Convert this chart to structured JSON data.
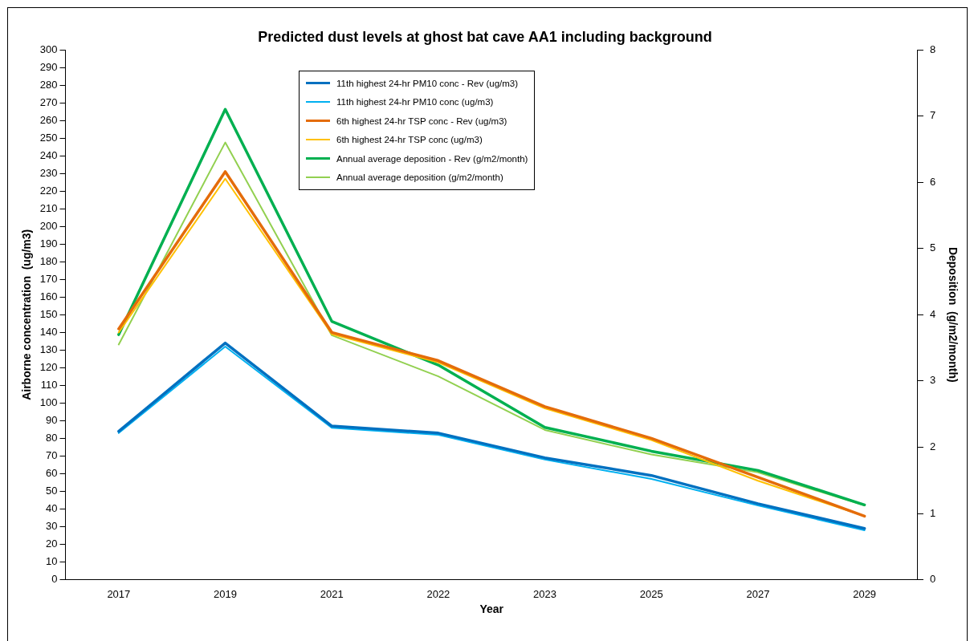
{
  "chart_data": {
    "type": "line",
    "title": "Predicted dust levels at ghost bat cave AA1 including background",
    "xlabel": "Year",
    "ylabel": "Airborne concentration  (ug/m3)",
    "y2label": "Deposition  (g/m2/month)",
    "categories": [
      "2017",
      "2019",
      "2021",
      "2022",
      "2023",
      "2025",
      "2027",
      "2029"
    ],
    "series": [
      {
        "name": "11th highest 24-hr PM10 conc - Rev (ug/m3)",
        "color": "#0070c0",
        "values": [
          84,
          134,
          87,
          83,
          69,
          59,
          43,
          29
        ]
      },
      {
        "name": "11th highest 24-hr PM10 conc (ug/m3)",
        "color": "#00b0f0",
        "values": [
          83,
          132,
          86,
          82,
          68,
          57,
          42,
          28
        ]
      },
      {
        "name": "6th highest 24-hr TSP conc - Rev (ug/m3)",
        "color": "#e46c0a",
        "values": [
          142,
          231,
          140,
          124,
          98,
          80,
          58,
          36
        ]
      },
      {
        "name": "6th highest 24-hr TSP conc (ug/m3)",
        "color": "#ffc000",
        "values": [
          140,
          227,
          139,
          123,
          97,
          79,
          56,
          36
        ]
      },
      {
        "name": "Annual average deposition - Rev (g/m2/month)",
        "color": "#00b050",
        "axis": "y2",
        "values": [
          3.7,
          7.1,
          3.9,
          3.24,
          2.3,
          1.94,
          1.65,
          1.13
        ]
      },
      {
        "name": "Annual average deposition (g/m2/month)",
        "color": "#92d050",
        "axis": "y2",
        "values": [
          3.55,
          6.6,
          3.69,
          3.07,
          2.26,
          1.89,
          1.62,
          1.12
        ]
      }
    ],
    "ylim": [
      0,
      300
    ],
    "yticks": [
      0,
      10,
      20,
      30,
      40,
      50,
      60,
      70,
      80,
      90,
      100,
      110,
      120,
      130,
      140,
      150,
      160,
      170,
      180,
      190,
      200,
      210,
      220,
      230,
      240,
      250,
      260,
      270,
      280,
      290,
      300
    ],
    "y2lim": [
      0,
      8
    ],
    "y2ticks": [
      0,
      1,
      2,
      3,
      4,
      5,
      6,
      7,
      8
    ],
    "grid": false,
    "legend": "top",
    "marker": "none",
    "line_style": "solid"
  }
}
